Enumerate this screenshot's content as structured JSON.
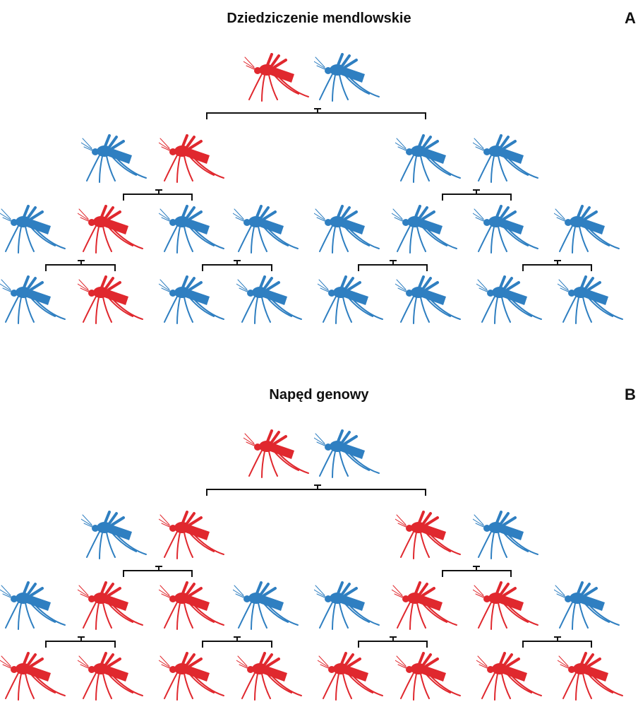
{
  "panels": [
    {
      "title": "Dziedziczenie mendlowskie",
      "letter": "A"
    },
    {
      "title": "Napęd genowy",
      "letter": "B"
    }
  ]
}
